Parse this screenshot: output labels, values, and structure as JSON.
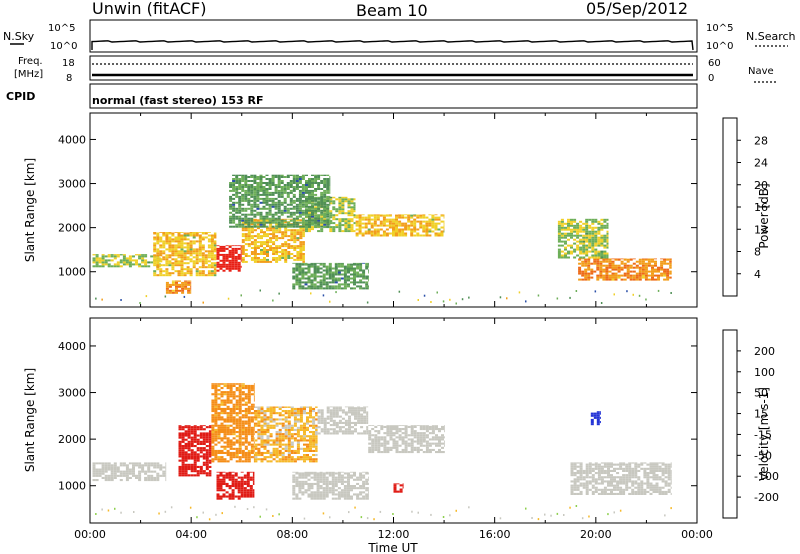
{
  "header": {
    "station": "Unwin (fitACF)",
    "beam": "Beam 10",
    "date": "05/Sep/2012"
  },
  "strips": {
    "nsky_label": "N.Sky",
    "nsearch_label": "N.Search",
    "left_ticks_top": [
      "10^5",
      "10^0"
    ],
    "right_ticks_top": [
      "10^5",
      "10^0"
    ],
    "freq_label_1": "Freq.",
    "freq_label_2": "[MHz]",
    "freq_ticks": [
      "18",
      "8"
    ],
    "nave_label": "Nave",
    "nave_ticks": [
      "60",
      "0"
    ],
    "cpid_label": "CPID",
    "cpid_text": "normal (fast stereo) 153 RF"
  },
  "colors": {
    "power": [
      "#1f2fe8",
      "#2a4fa8",
      "#4f8f55",
      "#6dae58",
      "#f0d028",
      "#f29d1a",
      "#ee6a18",
      "#e82015"
    ],
    "velocity": [
      "#e01b15",
      "#ee5a18",
      "#f58e18",
      "#f6b92a",
      "#c8c8c0",
      "#8ed04e",
      "#4e9a3b",
      "#3b6fb6",
      "#2434d6"
    ]
  },
  "chart_data": [
    {
      "type": "heatmap",
      "title": "Power",
      "ylabel": "Slant Range [km]",
      "xlabel": "Time UT",
      "x_ticks": [
        "00:00",
        "04:00",
        "08:00",
        "12:00",
        "16:00",
        "20:00",
        "00:00"
      ],
      "y_ticks": [
        "1000",
        "2000",
        "3000",
        "4000"
      ],
      "ylim": [
        200,
        4600
      ],
      "xlim": [
        0,
        24
      ],
      "colorbar": {
        "label": "Power [dB]",
        "ticks": [
          "4",
          "8",
          "12",
          "16",
          "20",
          "24",
          "28"
        ]
      },
      "regions": [
        {
          "x": [
            0.1,
            2.8
          ],
          "y": [
            1100,
            1400
          ],
          "value": 12
        },
        {
          "x": [
            2.5,
            5.0
          ],
          "y": [
            900,
            1900
          ],
          "value": 16
        },
        {
          "x": [
            5.0,
            6.0
          ],
          "y": [
            1000,
            1600
          ],
          "value": 28
        },
        {
          "x": [
            3.0,
            4.0
          ],
          "y": [
            500,
            800
          ],
          "value": 20
        },
        {
          "x": [
            6.0,
            8.5
          ],
          "y": [
            1200,
            2200
          ],
          "value": 16
        },
        {
          "x": [
            8.5,
            10.5
          ],
          "y": [
            1900,
            2700
          ],
          "value": 12
        },
        {
          "x": [
            10.5,
            14.0
          ],
          "y": [
            1800,
            2300
          ],
          "value": 16
        },
        {
          "x": [
            5.5,
            9.5
          ],
          "y": [
            2000,
            3200
          ],
          "value": 8
        },
        {
          "x": [
            8.0,
            11.0
          ],
          "y": [
            600,
            1200
          ],
          "value": 8
        },
        {
          "x": [
            19.3,
            23.0
          ],
          "y": [
            800,
            1300
          ],
          "value": 20
        },
        {
          "x": [
            18.5,
            20.5
          ],
          "y": [
            1300,
            2200
          ],
          "value": 12
        }
      ]
    },
    {
      "type": "heatmap",
      "title": "Velocity",
      "ylabel": "Slant Range [km]",
      "xlabel": "Time UT",
      "x_ticks": [
        "00:00",
        "04:00",
        "08:00",
        "12:00",
        "16:00",
        "20:00",
        "00:00"
      ],
      "y_ticks": [
        "1000",
        "2000",
        "3000",
        "4000"
      ],
      "ylim": [
        200,
        4600
      ],
      "xlim": [
        0,
        24
      ],
      "colorbar": {
        "label": "Velocity [m s-1]",
        "ticks": [
          "200",
          "100",
          "50",
          "15",
          "-15",
          "-50",
          "-100",
          "-200"
        ]
      },
      "regions": [
        {
          "x": [
            0.1,
            3.0
          ],
          "y": [
            1100,
            1500
          ],
          "value": 0
        },
        {
          "x": [
            3.5,
            4.8
          ],
          "y": [
            1200,
            2300
          ],
          "value": -200
        },
        {
          "x": [
            4.8,
            6.5
          ],
          "y": [
            1500,
            3200
          ],
          "value": -50
        },
        {
          "x": [
            5.0,
            6.5
          ],
          "y": [
            700,
            1300
          ],
          "value": -200
        },
        {
          "x": [
            6.5,
            9.0
          ],
          "y": [
            1500,
            2700
          ],
          "value": -30
        },
        {
          "x": [
            9.0,
            11.0
          ],
          "y": [
            2100,
            2700
          ],
          "value": 0
        },
        {
          "x": [
            11.0,
            14.0
          ],
          "y": [
            1700,
            2300
          ],
          "value": 0
        },
        {
          "x": [
            8.0,
            11.0
          ],
          "y": [
            700,
            1300
          ],
          "value": 0
        },
        {
          "x": [
            12.0,
            12.4
          ],
          "y": [
            850,
            1050
          ],
          "value": -200
        },
        {
          "x": [
            19.0,
            23.0
          ],
          "y": [
            800,
            1500
          ],
          "value": 0
        },
        {
          "x": [
            19.8,
            20.2
          ],
          "y": [
            2300,
            2600
          ],
          "value": 200
        }
      ]
    }
  ]
}
